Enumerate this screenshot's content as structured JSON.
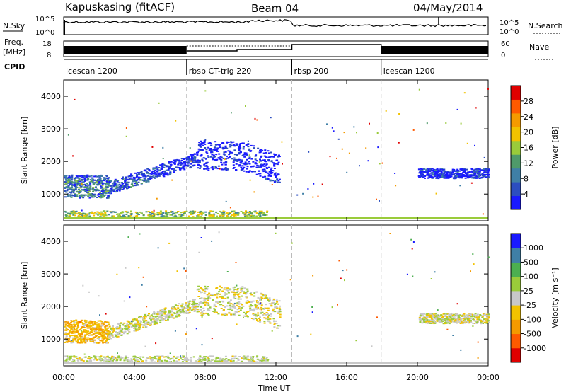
{
  "header": {
    "station": "Kapuskasing (fitACF)",
    "beam": "Beam 04",
    "date": "04/May/2014"
  },
  "strip": {
    "nsky_label": "N.Sky",
    "nsky_ticks": [
      "10^5",
      "10^0"
    ],
    "nsearch_ticks": [
      "10^5",
      "10^0"
    ],
    "nsearch_label": "N.Search",
    "freq_label": "Freq.",
    "freq_unit": "[MHz]",
    "freq_ticks": [
      "18",
      "8"
    ],
    "nave_ticks": [
      "60",
      "0"
    ],
    "nave_label": "Nave",
    "cpid_label": "CPID"
  },
  "cpid_modes": [
    {
      "label": "icescan 1200",
      "start_hour": 0
    },
    {
      "label": "rbsp CT-trig 220",
      "start_hour": 6.95
    },
    {
      "label": "rbsp 200",
      "start_hour": 12.9
    },
    {
      "label": "icescan 1200",
      "start_hour": 17.95
    }
  ],
  "chart_data": [
    {
      "type": "heatmap",
      "title": "",
      "xlabel": "Time UT",
      "ylabel": "Slant Range [km]",
      "x_ticks": [
        "00:00",
        "04:00",
        "08:00",
        "12:00",
        "16:00",
        "20:00",
        "00:00"
      ],
      "y_ticks": [
        "1000",
        "2000",
        "3000",
        "4000"
      ],
      "xlim_hours": [
        0,
        24
      ],
      "ylim": [
        180,
        4500
      ],
      "colorbar": {
        "label": "Power [dB]",
        "ticks": [
          "28",
          "24",
          "20",
          "16",
          "12",
          "8",
          "4"
        ],
        "range": [
          0,
          30
        ],
        "colors": [
          "#1a1aff",
          "#2c4ec0",
          "#3f7fa6",
          "#4f9a6a",
          "#9acb3a",
          "#f2c200",
          "#f59a00",
          "#ff5a00",
          "#e00000"
        ]
      },
      "regions": [
        {
          "name": "near-range ground scatter",
          "t": [
            0,
            11.5
          ],
          "range_km": [
            300,
            500
          ],
          "power_db": 14
        },
        {
          "name": "early far-range echoes",
          "t": [
            0,
            2.5
          ],
          "range_km": [
            900,
            1600
          ],
          "power_db": 8
        },
        {
          "name": "rising arc",
          "t": [
            2.5,
            7.5
          ],
          "range_km": [
            1200,
            2200
          ],
          "power_db": 6
        },
        {
          "name": "high-range patch",
          "t": [
            7.5,
            12.2
          ],
          "range_km": [
            1600,
            2700
          ],
          "power_db": 4
        },
        {
          "name": "late evening echoes",
          "t": [
            20,
            24
          ],
          "range_km": [
            1500,
            1800
          ],
          "power_db": 6
        }
      ]
    },
    {
      "type": "heatmap",
      "title": "",
      "xlabel": "Time UT",
      "ylabel": "Slant Range [km]",
      "x_ticks": [
        "00:00",
        "04:00",
        "08:00",
        "12:00",
        "16:00",
        "20:00",
        "00:00"
      ],
      "y_ticks": [
        "1000",
        "2000",
        "3000",
        "4000"
      ],
      "xlim_hours": [
        0,
        24
      ],
      "ylim": [
        180,
        4500
      ],
      "colorbar": {
        "label": "Velocity [m s⁻¹]",
        "ticks": [
          "1000",
          "500",
          "100",
          "25",
          "-25",
          "-100",
          "-500",
          "-1000"
        ],
        "range": [
          -1000,
          1000
        ],
        "colors": [
          "#e00000",
          "#ff5a00",
          "#f59a00",
          "#f2c200",
          "#c8c8c8",
          "#9acb3a",
          "#4caf50",
          "#3f7fa6",
          "#1a1aff"
        ]
      },
      "regions": [
        {
          "name": "near-range ground scatter",
          "t": [
            0,
            11.5
          ],
          "range_km": [
            300,
            500
          ],
          "velocity": 80
        },
        {
          "name": "early far-range echoes",
          "t": [
            0,
            2.5
          ],
          "range_km": [
            900,
            1600
          ],
          "velocity": -300
        },
        {
          "name": "rising arc",
          "t": [
            2.5,
            7.5
          ],
          "range_km": [
            1200,
            2200
          ],
          "velocity": 0
        },
        {
          "name": "high-range patch",
          "t": [
            7.5,
            12.2
          ],
          "range_km": [
            1600,
            2700
          ],
          "velocity": 0
        },
        {
          "name": "late evening echoes",
          "t": [
            20,
            24
          ],
          "range_km": [
            1500,
            1800
          ],
          "velocity": 0
        }
      ]
    }
  ]
}
